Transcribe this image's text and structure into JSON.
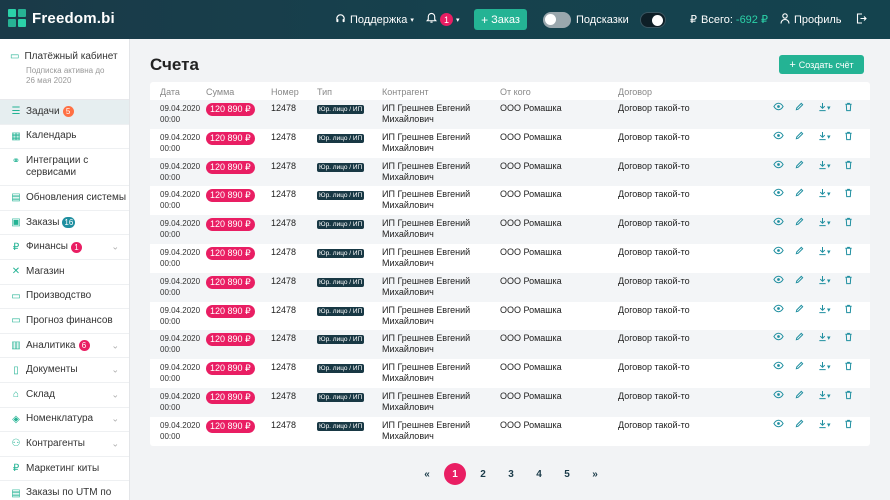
{
  "topbar": {
    "logo": "Freedom.bi",
    "support": "Поддержка",
    "notifications_count": "1",
    "order_label": "Заказ",
    "hints_label": "Подсказки",
    "balance_label": "Всего:",
    "balance_value": "-692 ₽",
    "profile_label": "Профиль",
    "colors": {
      "bg": "#16414d",
      "accent": "#24b394",
      "badge": "#e91e63"
    }
  },
  "sidebar": {
    "cabinet_title": "Платёжный кабинет",
    "subscription_note": "Подписка активна до 26 мая 2020",
    "items": [
      {
        "label": "Задачи",
        "badge": "5",
        "icon": "tasks-icon"
      },
      {
        "label": "Календарь",
        "icon": "calendar-icon"
      },
      {
        "label": "Интеграции с сервисами",
        "icon": "link-icon"
      },
      {
        "label": "Обновления системы",
        "icon": "updates-icon"
      },
      {
        "label": "Заказы",
        "badge": "16",
        "icon": "cart-icon"
      },
      {
        "label": "Финансы",
        "badge": "1",
        "icon": "ruble-icon"
      },
      {
        "label": "Магазин",
        "icon": "shop-icon"
      },
      {
        "label": "Производство",
        "icon": "factory-icon"
      },
      {
        "label": "Прогноз финансов",
        "icon": "forecast-icon"
      },
      {
        "label": "Аналитика",
        "badge": "6",
        "icon": "chart-icon"
      },
      {
        "label": "Документы",
        "icon": "document-icon"
      },
      {
        "label": "Склад",
        "icon": "warehouse-icon"
      },
      {
        "label": "Номенклатура",
        "icon": "tag-icon"
      },
      {
        "label": "Контрагенты",
        "icon": "users-icon"
      },
      {
        "label": "Маркетинг киты",
        "icon": "ruble-icon"
      },
      {
        "label": "Заказы по UTM по",
        "icon": "utm-icon"
      }
    ]
  },
  "main": {
    "title": "Счета",
    "create_button": "Создать счёт",
    "columns": [
      "Дата",
      "Сумма",
      "Номер",
      "Тип",
      "Контрагент",
      "От кого",
      "Договор"
    ],
    "rows": [
      {
        "date": "09.04.2020",
        "time": "00:00",
        "sum": "120 890 ₽",
        "number": "12478",
        "type": "Юр. лицо / ИП",
        "counterparty_1": "ИП Грешнев Евгений",
        "counterparty_2": "Михайлович",
        "from": "ООО Ромашка",
        "contract": "Договор такой-то"
      },
      {
        "date": "09.04.2020",
        "time": "00:00",
        "sum": "120 890 ₽",
        "number": "12478",
        "type": "Юр. лицо / ИП",
        "counterparty_1": "ИП Грешнев Евгений",
        "counterparty_2": "Михайлович",
        "from": "ООО Ромашка",
        "contract": "Договор такой-то"
      },
      {
        "date": "09.04.2020",
        "time": "00:00",
        "sum": "120 890 ₽",
        "number": "12478",
        "type": "Юр. лицо / ИП",
        "counterparty_1": "ИП Грешнев Евгений",
        "counterparty_2": "Михайлович",
        "from": "ООО Ромашка",
        "contract": "Договор такой-то"
      },
      {
        "date": "09.04.2020",
        "time": "00:00",
        "sum": "120 890 ₽",
        "number": "12478",
        "type": "Юр. лицо / ИП",
        "counterparty_1": "ИП Грешнев Евгений",
        "counterparty_2": "Михайлович",
        "from": "ООО Ромашка",
        "contract": "Договор такой-то"
      },
      {
        "date": "09.04.2020",
        "time": "00:00",
        "sum": "120 890 ₽",
        "number": "12478",
        "type": "Юр. лицо / ИП",
        "counterparty_1": "ИП Грешнев Евгений",
        "counterparty_2": "Михайлович",
        "from": "ООО Ромашка",
        "contract": "Договор такой-то"
      },
      {
        "date": "09.04.2020",
        "time": "00:00",
        "sum": "120 890 ₽",
        "number": "12478",
        "type": "Юр. лицо / ИП",
        "counterparty_1": "ИП Грешнев Евгений",
        "counterparty_2": "Михайлович",
        "from": "ООО Ромашка",
        "contract": "Договор такой-то"
      },
      {
        "date": "09.04.2020",
        "time": "00:00",
        "sum": "120 890 ₽",
        "number": "12478",
        "type": "Юр. лицо / ИП",
        "counterparty_1": "ИП Грешнев Евгений",
        "counterparty_2": "Михайлович",
        "from": "ООО Ромашка",
        "contract": "Договор такой-то"
      },
      {
        "date": "09.04.2020",
        "time": "00:00",
        "sum": "120 890 ₽",
        "number": "12478",
        "type": "Юр. лицо / ИП",
        "counterparty_1": "ИП Грешнев Евгений",
        "counterparty_2": "Михайлович",
        "from": "ООО Ромашка",
        "contract": "Договор такой-то"
      },
      {
        "date": "09.04.2020",
        "time": "00:00",
        "sum": "120 890 ₽",
        "number": "12478",
        "type": "Юр. лицо / ИП",
        "counterparty_1": "ИП Грешнев Евгений",
        "counterparty_2": "Михайлович",
        "from": "ООО Ромашка",
        "contract": "Договор такой-то"
      },
      {
        "date": "09.04.2020",
        "time": "00:00",
        "sum": "120 890 ₽",
        "number": "12478",
        "type": "Юр. лицо / ИП",
        "counterparty_1": "ИП Грешнев Евгений",
        "counterparty_2": "Михайлович",
        "from": "ООО Ромашка",
        "contract": "Договор такой-то"
      },
      {
        "date": "09.04.2020",
        "time": "00:00",
        "sum": "120 890 ₽",
        "number": "12478",
        "type": "Юр. лицо / ИП",
        "counterparty_1": "ИП Грешнев Евгений",
        "counterparty_2": "Михайлович",
        "from": "ООО Ромашка",
        "contract": "Договор такой-то"
      },
      {
        "date": "09.04.2020",
        "time": "00:00",
        "sum": "120 890 ₽",
        "number": "12478",
        "type": "Юр. лицо / ИП",
        "counterparty_1": "ИП Грешнев Евгений",
        "counterparty_2": "Михайлович",
        "from": "ООО Ромашка",
        "contract": "Договор такой-то"
      }
    ],
    "pagination": {
      "prev": "«",
      "pages": [
        "1",
        "2",
        "3",
        "4",
        "5"
      ],
      "next": "»",
      "current": "1"
    }
  }
}
